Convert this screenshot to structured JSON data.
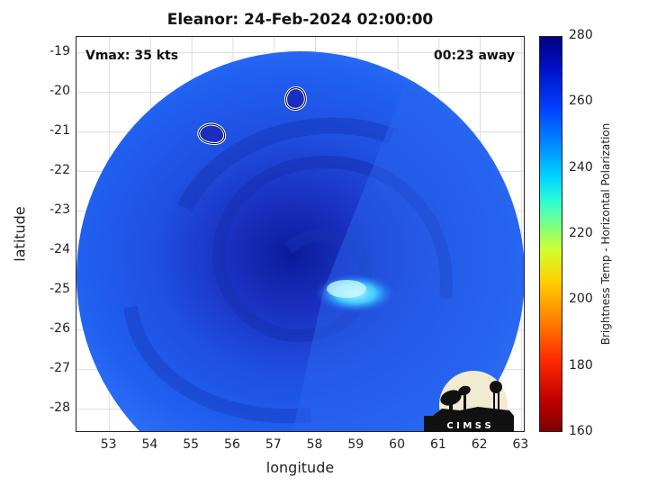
{
  "title": "Eleanor: 24-Feb-2024 02:00:00",
  "vmax_text": "Vmax: 35 kts",
  "away_text": "00:23 away",
  "xlabel": "longitude",
  "ylabel": "latitude",
  "xticks": [
    "53",
    "54",
    "55",
    "56",
    "57",
    "58",
    "59",
    "60",
    "61",
    "62",
    "63"
  ],
  "yticks": [
    "-19",
    "-20",
    "-21",
    "-22",
    "-23",
    "-24",
    "-25",
    "-26",
    "-27",
    "-28"
  ],
  "colorbar": {
    "label": "Brightness Temp - Horizontal Polarization",
    "ticks": [
      "280",
      "260",
      "240",
      "220",
      "200",
      "180",
      "160"
    ],
    "range": [
      160,
      280
    ],
    "colormap": "jet"
  },
  "logo_text": "C I M S S",
  "chart_data": {
    "type": "heatmap",
    "title": "Eleanor: 24-Feb-2024 02:00:00",
    "xlabel": "longitude",
    "ylabel": "latitude",
    "xlim": [
      52.2,
      63.1
    ],
    "ylim": [
      -28.6,
      -18.6
    ],
    "vmax": "35 kts",
    "time_away": "00:23 away",
    "colorbar_range": [
      160,
      280
    ],
    "annotations": [
      {
        "type": "contour",
        "lon": 55.5,
        "lat": -21.1
      },
      {
        "type": "contour",
        "lon": 57.5,
        "lat": -20.3
      }
    ]
  }
}
